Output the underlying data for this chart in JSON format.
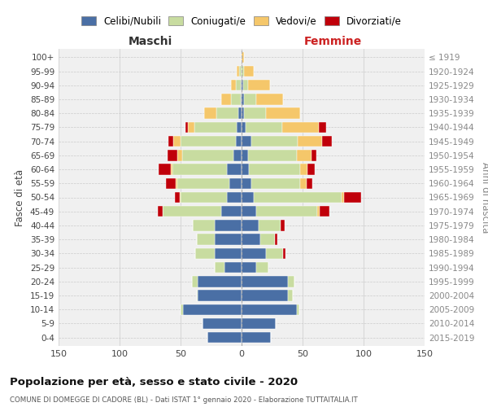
{
  "age_groups": [
    "0-4",
    "5-9",
    "10-14",
    "15-19",
    "20-24",
    "25-29",
    "30-34",
    "35-39",
    "40-44",
    "45-49",
    "50-54",
    "55-59",
    "60-64",
    "65-69",
    "70-74",
    "75-79",
    "80-84",
    "85-89",
    "90-94",
    "95-99",
    "100+"
  ],
  "birth_years": [
    "2015-2019",
    "2010-2014",
    "2005-2009",
    "2000-2004",
    "1995-1999",
    "1990-1994",
    "1985-1989",
    "1980-1984",
    "1975-1979",
    "1970-1974",
    "1965-1969",
    "1960-1964",
    "1955-1959",
    "1950-1954",
    "1945-1949",
    "1940-1944",
    "1935-1939",
    "1930-1934",
    "1925-1929",
    "1920-1924",
    "≤ 1919"
  ],
  "colors": {
    "celibi": "#4a6fa5",
    "coniugati": "#c8dca0",
    "vedovi": "#f5c76a",
    "divorziati": "#c0000a"
  },
  "maschi": {
    "celibi": [
      28,
      32,
      48,
      36,
      36,
      14,
      22,
      22,
      22,
      17,
      12,
      10,
      12,
      7,
      5,
      4,
      3,
      1,
      1,
      0,
      0
    ],
    "coniugati": [
      0,
      0,
      2,
      1,
      5,
      8,
      16,
      15,
      18,
      48,
      38,
      43,
      45,
      42,
      45,
      35,
      18,
      8,
      4,
      2,
      0
    ],
    "vedovi": [
      0,
      0,
      0,
      0,
      0,
      0,
      0,
      0,
      0,
      0,
      1,
      1,
      1,
      4,
      6,
      5,
      10,
      8,
      4,
      2,
      0
    ],
    "divorziati": [
      0,
      0,
      0,
      0,
      0,
      0,
      0,
      0,
      0,
      4,
      4,
      8,
      10,
      8,
      4,
      2,
      0,
      0,
      0,
      0,
      0
    ]
  },
  "femmine": {
    "celibi": [
      24,
      28,
      45,
      38,
      38,
      12,
      20,
      15,
      14,
      12,
      10,
      8,
      6,
      5,
      8,
      3,
      2,
      2,
      1,
      0,
      0
    ],
    "coniugati": [
      0,
      0,
      2,
      4,
      5,
      10,
      14,
      12,
      18,
      50,
      72,
      40,
      42,
      40,
      38,
      30,
      18,
      10,
      4,
      2,
      0
    ],
    "vedovi": [
      0,
      0,
      0,
      0,
      0,
      0,
      0,
      0,
      0,
      2,
      2,
      5,
      6,
      12,
      20,
      30,
      28,
      22,
      18,
      8,
      2
    ],
    "divorziati": [
      0,
      0,
      0,
      0,
      0,
      0,
      2,
      2,
      3,
      8,
      14,
      5,
      6,
      4,
      8,
      6,
      0,
      0,
      0,
      0,
      0
    ]
  },
  "title": "Popolazione per età, sesso e stato civile - 2020",
  "subtitle": "COMUNE DI DOMEGGE DI CADORE (BL) - Dati ISTAT 1° gennaio 2020 - Elaborazione TUTTAITALIA.IT",
  "xlabel_left": "Maschi",
  "xlabel_right": "Femmine",
  "ylabel_left": "Fasce di età",
  "ylabel_right": "Anni di nascita",
  "xlim": 150,
  "legend_labels": [
    "Celibi/Nubili",
    "Coniugati/e",
    "Vedovi/e",
    "Divorziati/e"
  ],
  "bg_color": "#f0f0f0"
}
